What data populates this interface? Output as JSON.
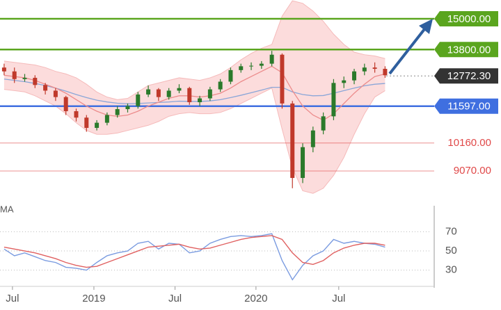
{
  "chart_data": [
    {
      "type": "candlestick",
      "xlim": [
        -0.4,
        41.5
      ],
      "ylim": [
        8070,
        15730
      ],
      "up_color": "#2b7a2b",
      "down_color": "#c0392b",
      "open": [
        13100,
        12950,
        12650,
        12700,
        12420,
        12200,
        11950,
        11400,
        11150,
        10750,
        10950,
        11250,
        11480,
        11600,
        12050,
        12250,
        11950,
        12200,
        12300,
        11750,
        11900,
        12250,
        12550,
        13000,
        13150,
        13170,
        13250,
        13600,
        11700,
        8800,
        10000,
        10650,
        11200,
        12500,
        12600,
        12950,
        13100,
        13050
      ],
      "high": [
        13250,
        13100,
        12850,
        12800,
        12500,
        12300,
        12000,
        11500,
        11250,
        11050,
        11350,
        11600,
        11700,
        12150,
        12400,
        12300,
        12300,
        12450,
        12350,
        12000,
        12350,
        12650,
        13100,
        13250,
        13300,
        13350,
        13750,
        13650,
        11800,
        10150,
        10800,
        11350,
        12650,
        12750,
        13050,
        13250,
        13300,
        13150
      ],
      "low": [
        12800,
        12500,
        12550,
        12300,
        12050,
        11800,
        11250,
        11000,
        10600,
        10650,
        10850,
        11150,
        11350,
        11500,
        11950,
        11800,
        11850,
        12100,
        11650,
        11600,
        11800,
        12150,
        12450,
        12900,
        13000,
        13050,
        13150,
        11500,
        8400,
        8600,
        9800,
        10500,
        11050,
        12300,
        12450,
        12800,
        12900,
        12700
      ],
      "close": [
        12950,
        12650,
        12700,
        12420,
        12200,
        11950,
        11400,
        11150,
        10750,
        10950,
        11250,
        11480,
        11600,
        12050,
        12250,
        11950,
        12200,
        12300,
        11750,
        11900,
        12250,
        12550,
        13000,
        13150,
        13170,
        13250,
        13600,
        11700,
        8800,
        10000,
        10650,
        11200,
        12500,
        12600,
        12950,
        13100,
        13050,
        12800
      ],
      "band": {
        "color": "#fbd6d6",
        "upper": [
          13350,
          13300,
          13250,
          13200,
          13100,
          12950,
          12850,
          12700,
          12450,
          12150,
          11950,
          11850,
          11900,
          12150,
          12400,
          12500,
          12600,
          12700,
          12650,
          12600,
          12700,
          12850,
          13100,
          13400,
          13650,
          13850,
          14000,
          15100,
          15700,
          15600,
          15300,
          14900,
          14400,
          14000,
          13700,
          13600,
          13550,
          13450
        ],
        "lower": [
          12250,
          12200,
          12150,
          12000,
          11800,
          11600,
          11300,
          10950,
          10650,
          10500,
          10500,
          10550,
          10650,
          10750,
          10850,
          11000,
          11200,
          11300,
          11350,
          11300,
          11300,
          11350,
          11500,
          11700,
          11900,
          12100,
          12300,
          10700,
          9200,
          8300,
          8200,
          8400,
          8900,
          9600,
          10500,
          11300,
          11950,
          12200
        ]
      },
      "lines": [
        {
          "color": "#8aa6d8",
          "values": [
            12650,
            12600,
            12550,
            12480,
            12400,
            12300,
            12180,
            12050,
            11930,
            11830,
            11760,
            11710,
            11690,
            11700,
            11720,
            11740,
            11760,
            11790,
            11780,
            11780,
            11800,
            11850,
            11930,
            12020,
            12120,
            12220,
            12330,
            12330,
            12150,
            12050,
            12000,
            12010,
            12100,
            12200,
            12300,
            12390,
            12450,
            12480
          ]
        },
        {
          "color": "#ec8c8c",
          "values": [
            12800,
            12750,
            12700,
            12600,
            12450,
            12300,
            12100,
            11850,
            11600,
            11400,
            11250,
            11200,
            11250,
            11400,
            11600,
            11750,
            11900,
            12000,
            12000,
            11950,
            12000,
            12100,
            12300,
            12550,
            12750,
            12950,
            13150,
            12900,
            12200,
            11600,
            11250,
            11050,
            11300,
            11700,
            12100,
            12450,
            12750,
            12850
          ]
        }
      ],
      "levels": [
        {
          "value": 15000,
          "label": "15000.00",
          "color": "#5aa51e",
          "style": "box"
        },
        {
          "value": 13800,
          "label": "13800.00",
          "color": "#5aa51e",
          "style": "box"
        },
        {
          "value": 12772.3,
          "label": "12772.30",
          "color": "#333333",
          "style": "dotted"
        },
        {
          "value": 11597,
          "label": "11597.00",
          "color": "#3f6fe0",
          "style": "box"
        },
        {
          "value": 10160,
          "label": "10160.00",
          "color": "#e04848",
          "style": "thin"
        },
        {
          "value": 9070,
          "label": "9070.00",
          "color": "#e04848",
          "style": "thin"
        }
      ]
    },
    {
      "type": "line",
      "label": "MA",
      "xlim": [
        -0.4,
        41.5
      ],
      "ylim": [
        16,
        100
      ],
      "yticks": [
        30,
        50,
        70
      ],
      "xticks": [
        {
          "value": 0.81,
          "label": "Jul"
        },
        {
          "value": 8.72,
          "label": "2019"
        },
        {
          "value": 16.6,
          "label": "Jul"
        },
        {
          "value": 24.46,
          "label": "2020"
        },
        {
          "value": 32.5,
          "label": "Jul"
        }
      ],
      "series": [
        {
          "color": "#7a9be0",
          "values": [
            52,
            45,
            48,
            44,
            40,
            38,
            33,
            32,
            30,
            38,
            45,
            48,
            50,
            58,
            60,
            52,
            58,
            57,
            48,
            50,
            58,
            62,
            65,
            66,
            65,
            66,
            68,
            40,
            20,
            35,
            45,
            50,
            62,
            58,
            60,
            58,
            57,
            54
          ]
        },
        {
          "color": "#e06060",
          "values": [
            54,
            52,
            50,
            48,
            45,
            42,
            38,
            35,
            33,
            34,
            38,
            42,
            46,
            50,
            54,
            55,
            56,
            57,
            54,
            52,
            53,
            56,
            59,
            62,
            64,
            65,
            66,
            62,
            48,
            38,
            36,
            40,
            48,
            53,
            56,
            58,
            58,
            56
          ]
        }
      ]
    }
  ]
}
